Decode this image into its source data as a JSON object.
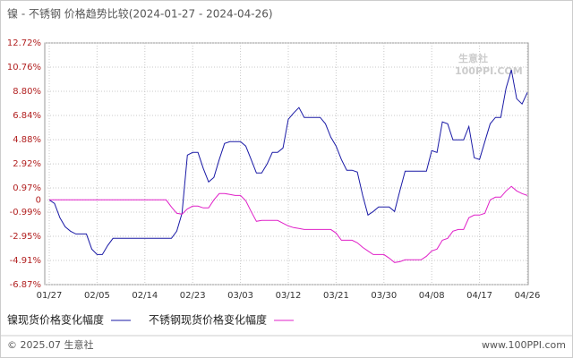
{
  "chart_data": {
    "type": "line",
    "title": "镍 - 不锈钢 价格趋势比较(2024-01-27 - 2024-04-26)",
    "watermark": "生意社",
    "watermark_sub": "100PPI.COM",
    "footer_left": "© 2025.07 生意社",
    "footer_right": "www.100PPI.com",
    "categories": [
      "01/27",
      null,
      null,
      null,
      null,
      null,
      null,
      null,
      null,
      "02/05",
      null,
      null,
      null,
      null,
      null,
      null,
      null,
      null,
      "02/14",
      null,
      null,
      null,
      null,
      null,
      null,
      null,
      null,
      "02/23",
      null,
      null,
      null,
      null,
      null,
      null,
      null,
      null,
      "03/03",
      null,
      null,
      null,
      null,
      null,
      null,
      null,
      null,
      "03/12",
      null,
      null,
      null,
      null,
      null,
      null,
      null,
      null,
      "03/21",
      null,
      null,
      null,
      null,
      null,
      null,
      null,
      null,
      "03/30",
      null,
      null,
      null,
      null,
      null,
      null,
      null,
      null,
      "04/08",
      null,
      null,
      null,
      null,
      null,
      null,
      null,
      null,
      "04/17",
      null,
      null,
      null,
      null,
      null,
      null,
      null,
      null,
      "04/26"
    ],
    "series": [
      {
        "name": "镍现货价格变化幅度",
        "color": "#1a1aa6",
        "values": [
          0,
          -0.29,
          -1.45,
          -2.18,
          -2.54,
          -2.76,
          -2.76,
          -2.76,
          -3.99,
          -4.43,
          -4.43,
          -3.7,
          -3.12,
          -3.12,
          -3.12,
          -3.12,
          -3.12,
          -3.12,
          -3.12,
          -3.12,
          -3.12,
          -3.12,
          -3.12,
          -3.12,
          -2.54,
          -1.09,
          3.63,
          3.85,
          3.85,
          2.54,
          1.45,
          1.82,
          3.27,
          4.57,
          4.72,
          4.72,
          4.72,
          4.36,
          3.27,
          2.18,
          2.18,
          2.9,
          3.85,
          3.85,
          4.21,
          6.53,
          7.04,
          7.48,
          6.68,
          6.68,
          6.68,
          6.68,
          6.17,
          5.08,
          4.36,
          3.27,
          2.4,
          2.4,
          2.25,
          0.36,
          -1.23,
          -0.94,
          -0.58,
          -0.58,
          -0.58,
          -0.94,
          0.73,
          2.32,
          2.32,
          2.32,
          2.32,
          2.32,
          3.99,
          3.85,
          6.32,
          6.17,
          4.86,
          4.86,
          4.86,
          5.95,
          3.41,
          3.27,
          4.72,
          6.17,
          6.68,
          6.68,
          9.08,
          10.53,
          8.2,
          7.77,
          8.71
        ]
      },
      {
        "name": "不锈钢现货价格变化幅度",
        "color": "#e020c8",
        "values": [
          0,
          0,
          0,
          0,
          0,
          0,
          0,
          0,
          0,
          0,
          0,
          0,
          0,
          0,
          0,
          0,
          0,
          0,
          0,
          0,
          0,
          0,
          0,
          -0.58,
          -1.09,
          -1.16,
          -0.73,
          -0.51,
          -0.51,
          -0.65,
          -0.65,
          0,
          0.51,
          0.51,
          0.44,
          0.36,
          0.36,
          -0.07,
          -0.94,
          -1.74,
          -1.67,
          -1.67,
          -1.67,
          -1.67,
          -1.89,
          -2.11,
          -2.25,
          -2.32,
          -2.4,
          -2.4,
          -2.4,
          -2.4,
          -2.4,
          -2.4,
          -2.69,
          -3.27,
          -3.27,
          -3.27,
          -3.48,
          -3.85,
          -4.14,
          -4.43,
          -4.43,
          -4.43,
          -4.72,
          -5.08,
          -5.01,
          -4.86,
          -4.86,
          -4.86,
          -4.86,
          -4.57,
          -4.14,
          -3.99,
          -3.27,
          -3.12,
          -2.54,
          -2.4,
          -2.4,
          -1.45,
          -1.23,
          -1.23,
          -1.09,
          0,
          0.22,
          0.22,
          0.73,
          1.09,
          0.73,
          0.51,
          0.36
        ]
      }
    ],
    "ylim": [
      -6.87,
      12.72
    ],
    "yticks": [
      {
        "value": 12.72,
        "label": "12.72%"
      },
      {
        "value": 10.76,
        "label": "10.76%"
      },
      {
        "value": 8.8,
        "label": "8.80%"
      },
      {
        "value": 6.84,
        "label": "6.84%"
      },
      {
        "value": 4.88,
        "label": "4.88%"
      },
      {
        "value": 2.92,
        "label": "2.92%"
      },
      {
        "value": 0.97,
        "label": "0.97%"
      },
      0,
      {
        "value": -0.99,
        "label": "-0.99%"
      },
      {
        "value": -2.95,
        "label": "-2.95%"
      },
      {
        "value": -4.91,
        "label": "-4.91%"
      },
      {
        "value": -6.87,
        "label": "-6.87%"
      }
    ],
    "grid": true
  }
}
